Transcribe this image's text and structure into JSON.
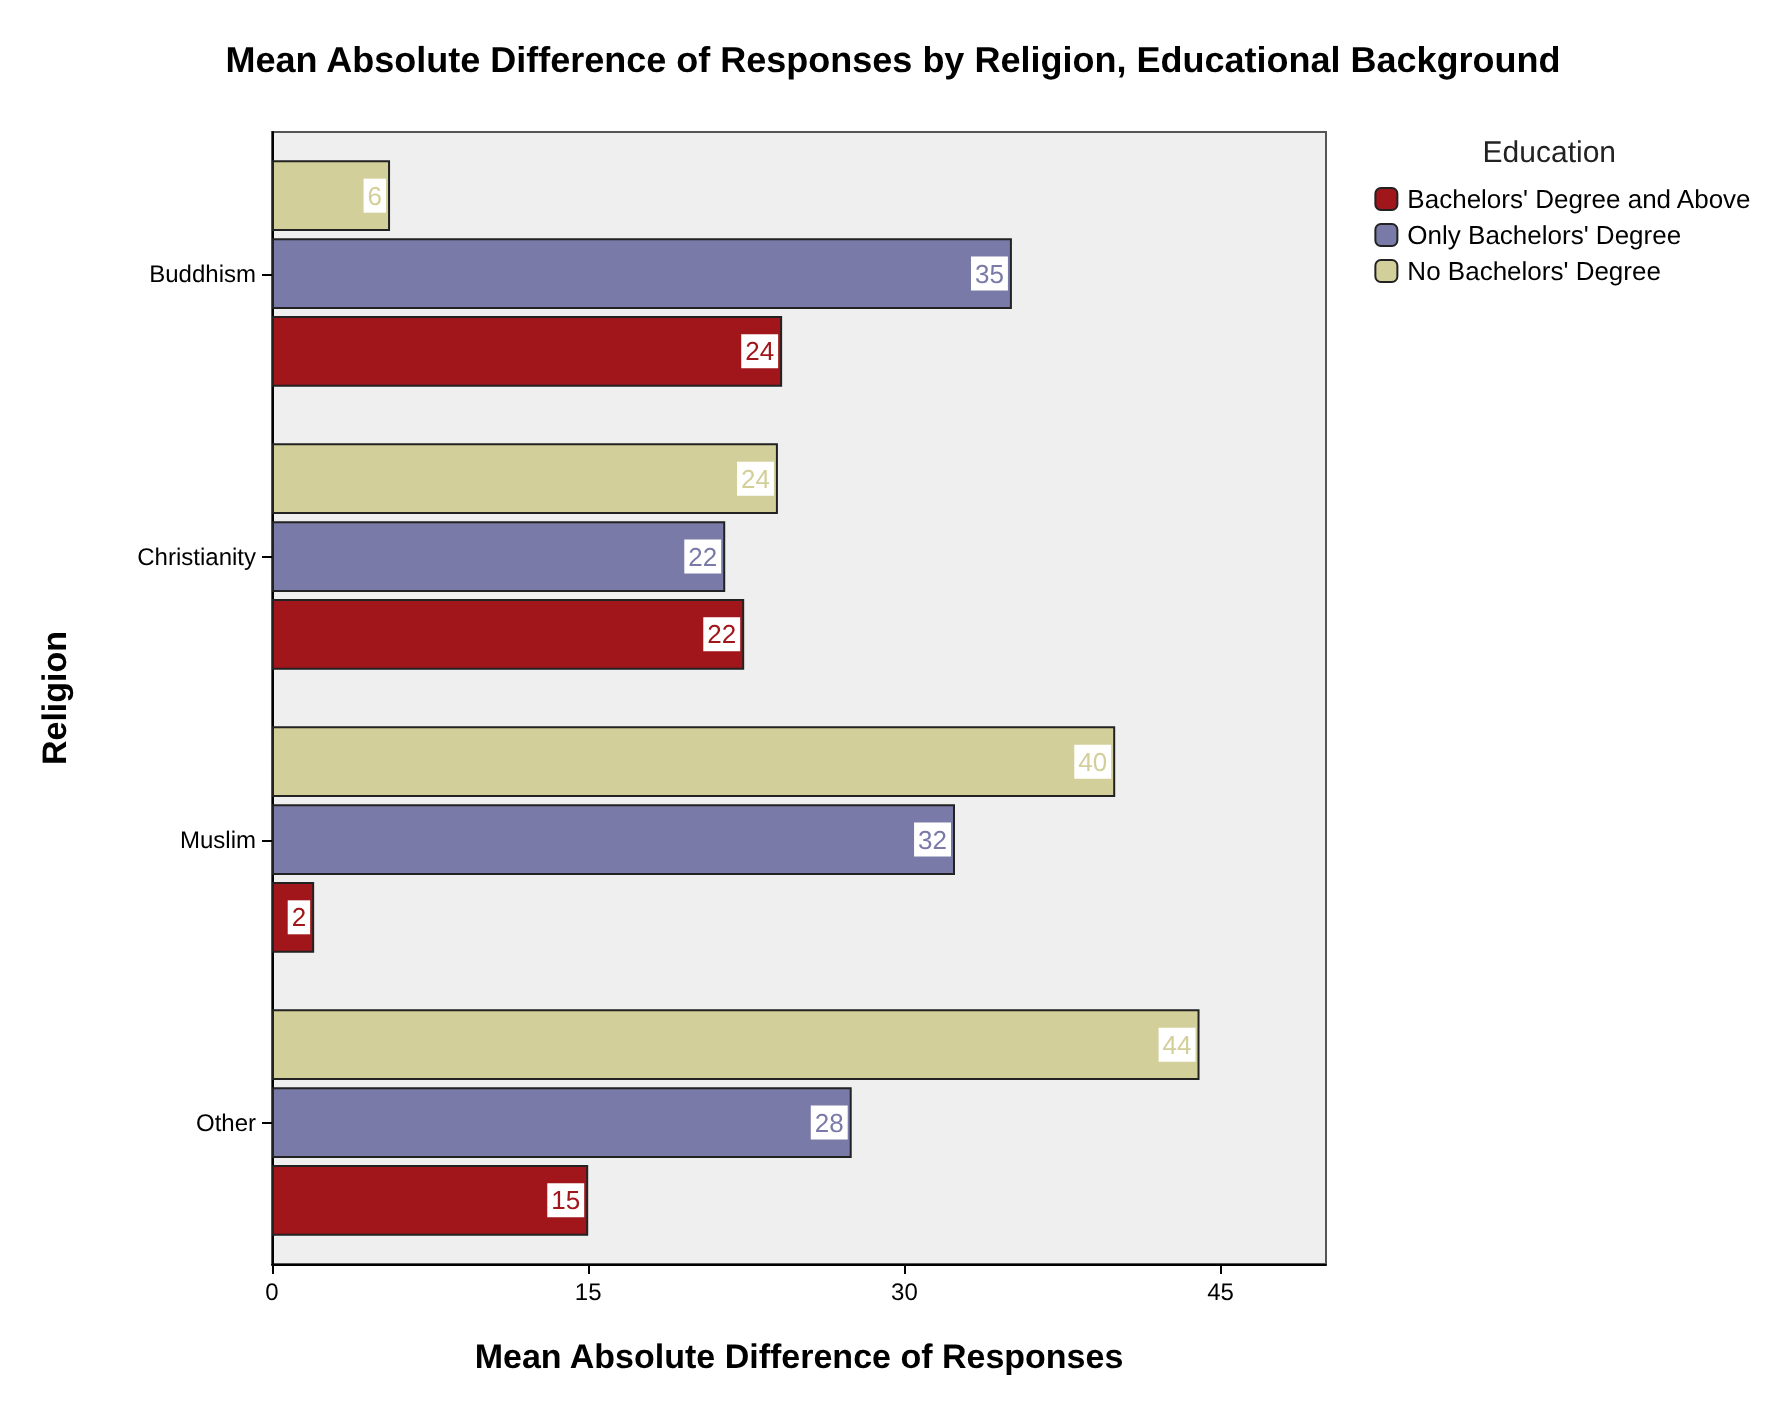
{
  "chart_data": {
    "type": "bar",
    "orientation": "horizontal",
    "title": "Mean Absolute Difference of Responses by Religion, Educational Background",
    "xlabel": "Mean Absolute Difference of Responses",
    "ylabel": "Religion",
    "legend_title": "Education",
    "legend": "top right",
    "categories": [
      "Buddhism",
      "Christianity",
      "Muslim",
      "Other"
    ],
    "series": [
      {
        "name": "Bachelors' Degree and Above",
        "color": "#a0161a",
        "values": [
          24.2,
          22.4,
          2.0,
          15.0
        ],
        "value_labels": [
          "24",
          "22",
          "2",
          "15"
        ]
      },
      {
        "name": "Only Bachelors' Degree",
        "color": "#7a7aa8",
        "values": [
          35.1,
          21.5,
          32.4,
          27.5
        ],
        "value_labels": [
          "35",
          "22",
          "32",
          "28"
        ]
      },
      {
        "name": "No Bachelors' Degree",
        "color": "#d3cf9a",
        "values": [
          5.6,
          24.0,
          40.0,
          44.0
        ],
        "value_labels": [
          "6",
          "24",
          "40",
          "44"
        ]
      }
    ],
    "xlim": [
      0,
      50
    ],
    "xticks": [
      0,
      15,
      30,
      45
    ],
    "grid": false
  }
}
